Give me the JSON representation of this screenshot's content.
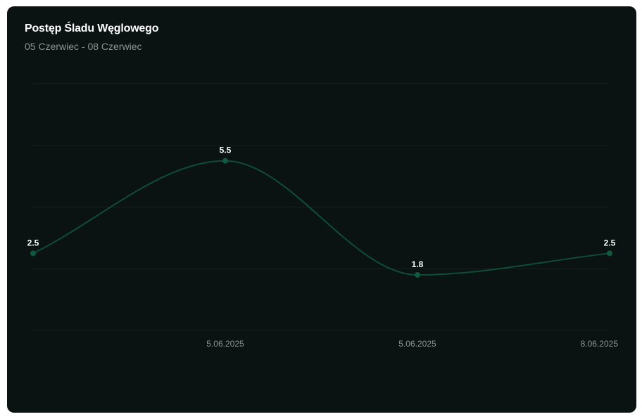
{
  "card": {
    "title": "Postęp Śladu Węglowego",
    "subtitle": "05 Czerwiec - 08 Czerwiec"
  },
  "chart_data": {
    "type": "line",
    "title": "Postęp Śladu Węglowego",
    "subtitle": "05 Czerwiec - 08 Czerwiec",
    "xlabel": "",
    "ylabel": "",
    "curve": "smooth",
    "grid": true,
    "legend": "none",
    "categories": [
      "",
      "5.06.2025",
      "5.06.2025",
      "8.06.2025"
    ],
    "series": [
      {
        "values": [
          2.5,
          5.5,
          1.8,
          2.5
        ],
        "color": "#0f4d36"
      }
    ],
    "ylim": [
      0,
      8
    ],
    "colors": {
      "background": "#0a1311",
      "line": "#0f4d36",
      "point": "#0f5a3c",
      "grid": "#17211f",
      "label": "#ffffff",
      "tick": "#8c9593"
    }
  }
}
